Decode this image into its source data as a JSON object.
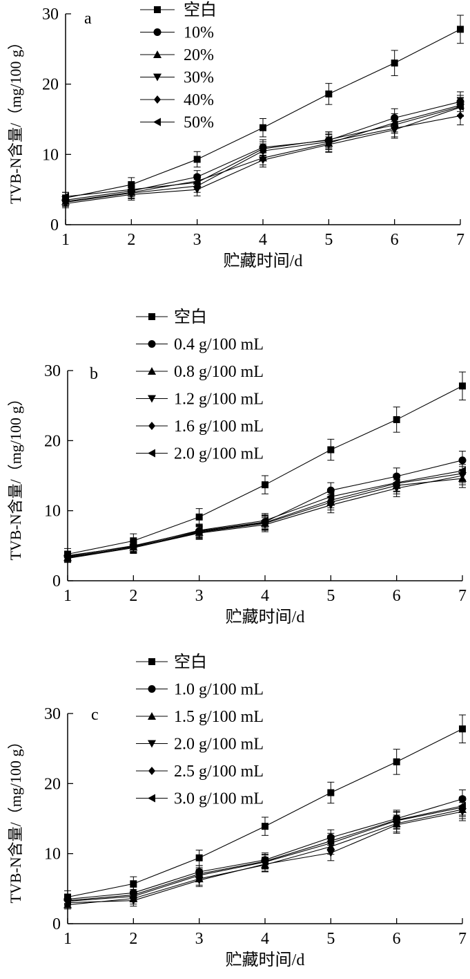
{
  "chart_data": [
    {
      "type": "line",
      "panel_label": "a",
      "xlabel": "贮藏时间/d",
      "ylabel": "TVB-N含量/（mg/100 g）",
      "x": [
        1,
        2,
        3,
        4,
        5,
        6,
        7
      ],
      "xlim": [
        1,
        7
      ],
      "ylim": [
        0,
        30
      ],
      "xticks": [
        1,
        2,
        3,
        4,
        5,
        6,
        7
      ],
      "yticks": [
        0,
        10,
        20,
        30
      ],
      "grid": false,
      "legend_position": "top-left",
      "series": [
        {
          "name": "空白",
          "marker": "square",
          "values": [
            3.8,
            5.7,
            9.3,
            13.8,
            18.6,
            23.0,
            27.8
          ],
          "error": [
            0.8,
            1.0,
            1.1,
            1.3,
            1.5,
            1.8,
            2.0
          ]
        },
        {
          "name": "10%",
          "marker": "circle",
          "values": [
            3.5,
            4.8,
            6.8,
            11.0,
            12.0,
            15.2,
            17.5
          ],
          "error": [
            0.6,
            0.8,
            0.9,
            1.1,
            1.2,
            1.3,
            1.4
          ]
        },
        {
          "name": "20%",
          "marker": "triangle-up",
          "values": [
            3.3,
            4.6,
            6.2,
            9.5,
            11.6,
            14.5,
            17.0
          ],
          "error": [
            0.6,
            0.8,
            0.9,
            1.0,
            1.2,
            1.3,
            1.4
          ]
        },
        {
          "name": "30%",
          "marker": "triangle-down",
          "values": [
            3.0,
            4.3,
            5.0,
            9.2,
            11.4,
            13.5,
            16.7
          ],
          "error": [
            0.6,
            0.8,
            0.9,
            1.0,
            1.1,
            1.2,
            1.3
          ]
        },
        {
          "name": "40%",
          "marker": "diamond",
          "values": [
            3.2,
            4.5,
            5.5,
            10.5,
            11.8,
            13.7,
            15.5
          ],
          "error": [
            0.6,
            0.8,
            0.9,
            1.0,
            1.1,
            1.2,
            1.3
          ]
        },
        {
          "name": "50%",
          "marker": "triangle-left",
          "values": [
            4.0,
            5.0,
            6.0,
            10.8,
            12.1,
            14.2,
            16.8
          ],
          "error": [
            0.6,
            0.8,
            0.9,
            1.0,
            1.1,
            1.2,
            1.3
          ]
        }
      ]
    },
    {
      "type": "line",
      "panel_label": "b",
      "xlabel": "贮藏时间/d",
      "ylabel": "TVB-N含量/（mg/100 g）",
      "x": [
        1,
        2,
        3,
        4,
        5,
        6,
        7
      ],
      "xlim": [
        1,
        7
      ],
      "ylim": [
        0,
        30
      ],
      "xticks": [
        1,
        2,
        3,
        4,
        5,
        6,
        7
      ],
      "yticks": [
        0,
        10,
        20,
        30
      ],
      "grid": false,
      "legend_position": "top",
      "series": [
        {
          "name": "空白",
          "marker": "square",
          "values": [
            3.8,
            5.7,
            9.1,
            13.7,
            18.7,
            23.0,
            27.8
          ],
          "error": [
            0.8,
            1.0,
            1.2,
            1.3,
            1.5,
            1.8,
            2.0
          ]
        },
        {
          "name": "0.4 g/100 mL",
          "marker": "circle",
          "values": [
            3.5,
            5.0,
            7.1,
            8.4,
            12.9,
            14.9,
            17.2
          ],
          "error": [
            0.6,
            0.8,
            0.9,
            1.0,
            1.1,
            1.2,
            1.3
          ]
        },
        {
          "name": "0.8 g/100 mL",
          "marker": "triangle-up",
          "values": [
            3.3,
            4.8,
            6.9,
            8.2,
            11.2,
            13.6,
            14.6
          ],
          "error": [
            0.6,
            0.8,
            0.9,
            1.0,
            1.1,
            1.2,
            1.3
          ]
        },
        {
          "name": "1.2 g/100 mL",
          "marker": "triangle-down",
          "values": [
            3.2,
            4.7,
            6.8,
            8.0,
            10.8,
            13.2,
            15.0
          ],
          "error": [
            0.6,
            0.8,
            0.9,
            1.0,
            1.1,
            1.2,
            1.3
          ]
        },
        {
          "name": "1.6 g/100 mL",
          "marker": "diamond",
          "values": [
            3.4,
            4.8,
            7.0,
            8.3,
            11.5,
            13.9,
            15.3
          ],
          "error": [
            0.6,
            0.8,
            0.9,
            1.0,
            1.1,
            1.2,
            1.3
          ]
        },
        {
          "name": "2.0 g/100 mL",
          "marker": "triangle-left",
          "values": [
            3.6,
            4.9,
            7.2,
            8.6,
            12.0,
            14.0,
            15.7
          ],
          "error": [
            0.6,
            0.8,
            0.9,
            1.0,
            1.1,
            1.2,
            1.3
          ]
        }
      ]
    },
    {
      "type": "line",
      "panel_label": "c",
      "xlabel": "贮藏时间/d",
      "ylabel": "TVB-N含量/（mg/100 g）",
      "x": [
        1,
        2,
        3,
        4,
        5,
        6,
        7
      ],
      "xlim": [
        1,
        7
      ],
      "ylim": [
        0,
        30
      ],
      "xticks": [
        1,
        2,
        3,
        4,
        5,
        6,
        7
      ],
      "yticks": [
        0,
        10,
        20,
        30
      ],
      "grid": false,
      "legend_position": "top",
      "series": [
        {
          "name": "空白",
          "marker": "square",
          "values": [
            3.8,
            5.7,
            9.4,
            13.9,
            18.7,
            23.1,
            27.8
          ],
          "error": [
            0.9,
            1.0,
            1.1,
            1.3,
            1.5,
            1.8,
            2.0
          ]
        },
        {
          "name": "1.0 g/100 mL",
          "marker": "circle",
          "values": [
            3.5,
            4.4,
            7.4,
            9.1,
            12.3,
            15.0,
            17.8
          ],
          "error": [
            0.7,
            0.8,
            0.9,
            1.0,
            1.1,
            1.2,
            1.3
          ]
        },
        {
          "name": "1.5 g/100 mL",
          "marker": "triangle-up",
          "values": [
            2.7,
            3.6,
            6.4,
            8.4,
            11.0,
            14.3,
            16.3
          ],
          "error": [
            0.6,
            0.8,
            0.9,
            1.0,
            1.1,
            1.2,
            1.3
          ]
        },
        {
          "name": "2.0 g/100 mL",
          "marker": "triangle-down",
          "values": [
            3.0,
            3.3,
            6.2,
            8.5,
            10.1,
            14.1,
            16.0
          ],
          "error": [
            0.6,
            0.8,
            0.9,
            1.0,
            1.1,
            1.2,
            1.3
          ]
        },
        {
          "name": "2.5 g/100 mL",
          "marker": "diamond",
          "values": [
            3.2,
            3.9,
            6.9,
            8.8,
            11.5,
            14.7,
            16.6
          ],
          "error": [
            0.6,
            0.8,
            0.9,
            1.0,
            1.1,
            1.2,
            1.3
          ]
        },
        {
          "name": "3.0 g/100 mL",
          "marker": "triangle-left",
          "values": [
            3.3,
            4.1,
            7.1,
            8.9,
            11.8,
            14.8,
            16.8
          ],
          "error": [
            0.6,
            0.8,
            0.9,
            1.0,
            1.1,
            1.2,
            1.3
          ]
        }
      ]
    }
  ]
}
